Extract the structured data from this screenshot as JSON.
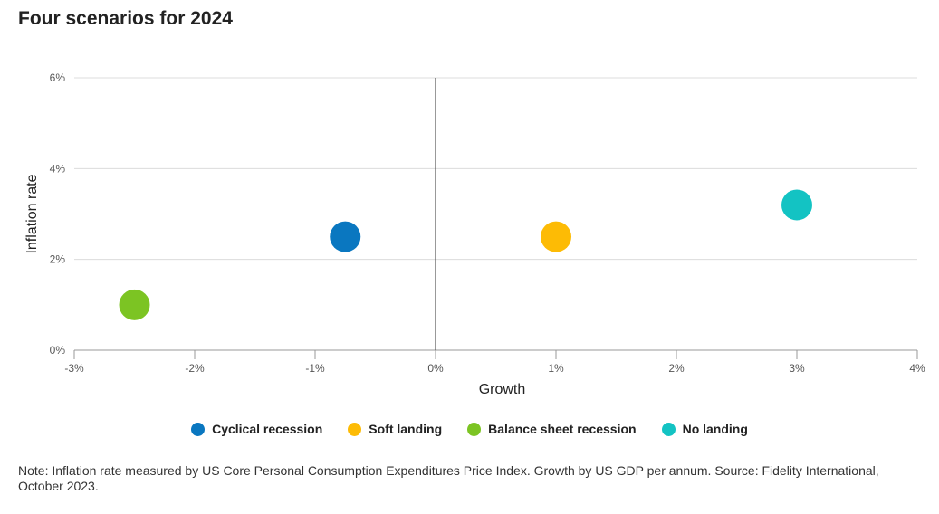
{
  "chart_data": {
    "type": "scatter",
    "title": "Four scenarios for 2024",
    "xlabel": "Growth",
    "ylabel": "Inflation rate",
    "xlim": [
      -3,
      4
    ],
    "ylim": [
      0,
      6
    ],
    "x_ticks": [
      "-3%",
      "-2%",
      "-1%",
      "0%",
      "1%",
      "2%",
      "3%",
      "4%"
    ],
    "y_ticks": [
      "0%",
      "2%",
      "4%",
      "6%"
    ],
    "grid": true,
    "legend_position": "bottom",
    "series": [
      {
        "name": "Cyclical recession",
        "color": "#0a77c0",
        "x": -0.75,
        "y": 2.5
      },
      {
        "name": "Soft landing",
        "color": "#fdbb05",
        "x": 1.0,
        "y": 2.5
      },
      {
        "name": "Balance sheet recession",
        "color": "#7cc423",
        "x": -2.5,
        "y": 1.0
      },
      {
        "name": "No landing",
        "color": "#13c3c3",
        "x": 3.0,
        "y": 3.2
      }
    ]
  },
  "note": "Note: Inflation rate measured by US Core Personal Consumption Expenditures Price Index. Growth by US GDP per annum. Source: Fidelity International, October 2023."
}
